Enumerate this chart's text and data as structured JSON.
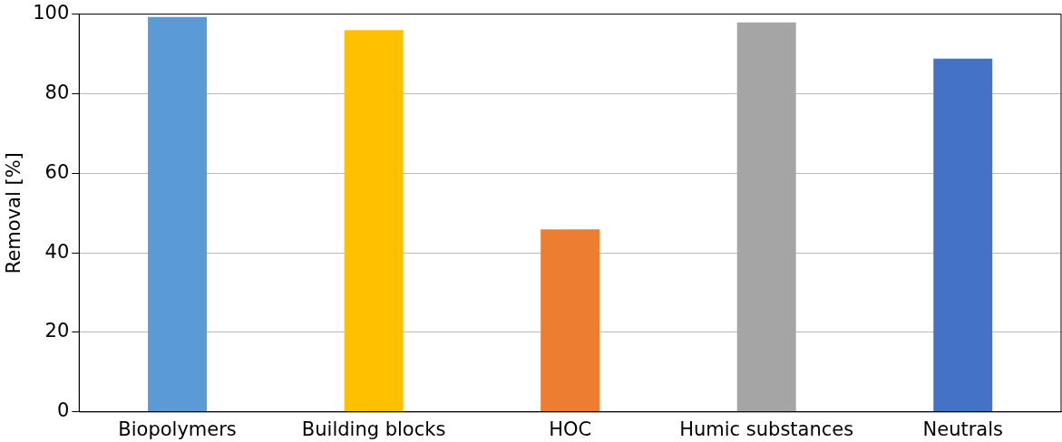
{
  "chart_data": {
    "type": "bar",
    "ylabel": "Removal [%]",
    "categories": [
      "Biopolymers",
      "Building blocks",
      "HOC",
      "Humic substances",
      "Neutrals"
    ],
    "values": [
      99.3,
      96.0,
      45.9,
      97.9,
      88.8
    ],
    "colors": [
      "#5b9bd5",
      "#ffc000",
      "#ed7d31",
      "#a5a5a5",
      "#4472c4"
    ],
    "ylim": [
      0,
      100
    ],
    "yticks": [
      0,
      20,
      40,
      60,
      80,
      100
    ],
    "grid": "y",
    "legend": false
  }
}
